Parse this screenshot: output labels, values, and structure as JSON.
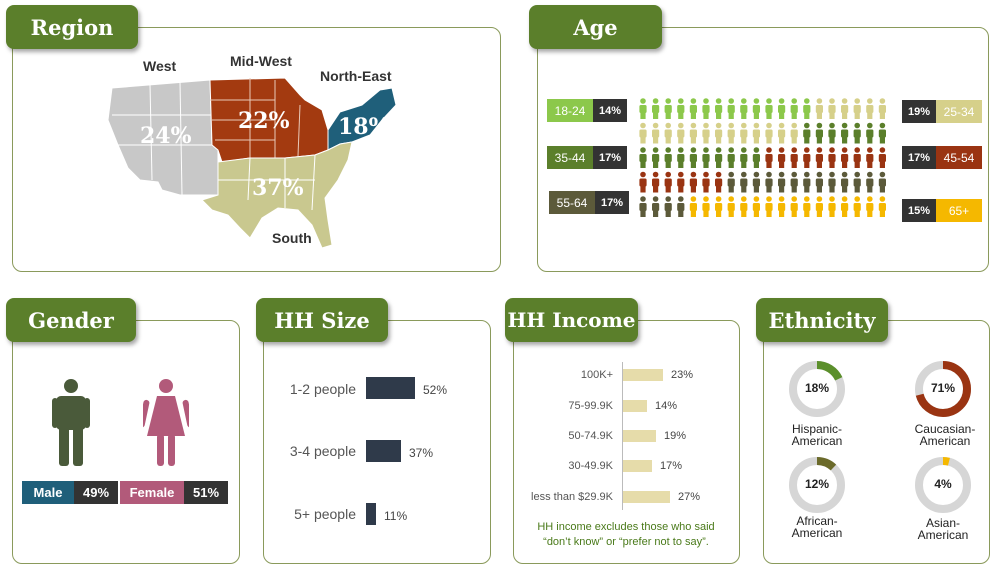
{
  "region": {
    "title": "Region",
    "areas": [
      {
        "name": "West",
        "pct": "24%"
      },
      {
        "name": "Mid-West",
        "pct": "22%"
      },
      {
        "name": "North-East",
        "pct": "18%"
      },
      {
        "name": "South",
        "pct": "37%"
      }
    ]
  },
  "age": {
    "title": "Age",
    "groups": [
      {
        "label": "18-24",
        "pct": "14%",
        "count": 14
      },
      {
        "label": "25-34",
        "pct": "19%",
        "count": 19
      },
      {
        "label": "35-44",
        "pct": "17%",
        "count": 17
      },
      {
        "label": "45-54",
        "pct": "17%",
        "count": 17
      },
      {
        "label": "55-64",
        "pct": "17%",
        "count": 17
      },
      {
        "label": "65+",
        "pct": "15%",
        "count": 15
      }
    ],
    "colors": [
      "#8cc84b",
      "#d6d08a",
      "#5b7f2b",
      "#9a3412",
      "#5c5a3a",
      "#f5b800"
    ]
  },
  "gender": {
    "title": "Gender",
    "male_label": "Male",
    "male_pct": "49%",
    "female_label": "Female",
    "female_pct": "51%"
  },
  "hh_size": {
    "title": "HH Size",
    "rows": [
      {
        "label": "1-2 people",
        "pct": "52%"
      },
      {
        "label": "3-4 people",
        "pct": "37%"
      },
      {
        "label": "5+ people",
        "pct": "11%"
      }
    ]
  },
  "hh_income": {
    "title": "HH Income",
    "rows": [
      {
        "label": "100K+",
        "pct": "23%"
      },
      {
        "label": "75-99.9K",
        "pct": "14%"
      },
      {
        "label": "50-74.9K",
        "pct": "19%"
      },
      {
        "label": "30-49.9K",
        "pct": "17%"
      },
      {
        "label": "less than $29.9K",
        "pct": "27%"
      }
    ],
    "note_line1": "HH income excludes those who said",
    "note_line2": "“don’t know” or “prefer not to say”."
  },
  "ethnicity": {
    "title": "Ethnicity",
    "items": [
      {
        "line1": "Hispanic-",
        "line2": "American",
        "pct": "18%",
        "color": "#5b8f2b"
      },
      {
        "line1": "Caucasian-",
        "line2": "American",
        "pct": "71%",
        "color": "#9a3412"
      },
      {
        "line1": "African-",
        "line2": "American",
        "pct": "12%",
        "color": "#6b6a2a"
      },
      {
        "line1": "Asian-",
        "line2": "American",
        "pct": "4%",
        "color": "#f5b800"
      }
    ]
  },
  "chart_data": [
    {
      "type": "table",
      "title": "Region",
      "categories": [
        "West",
        "Mid-West",
        "North-East",
        "South"
      ],
      "values": [
        24,
        22,
        18,
        37
      ]
    },
    {
      "type": "table",
      "title": "Age",
      "categories": [
        "18-24",
        "25-34",
        "35-44",
        "45-54",
        "55-64",
        "65+"
      ],
      "values": [
        14,
        19,
        17,
        17,
        17,
        15
      ]
    },
    {
      "type": "table",
      "title": "Gender",
      "categories": [
        "Male",
        "Female"
      ],
      "values": [
        49,
        51
      ]
    },
    {
      "type": "bar",
      "title": "HH Size",
      "categories": [
        "1-2 people",
        "3-4 people",
        "5+ people"
      ],
      "values": [
        52,
        37,
        11
      ]
    },
    {
      "type": "bar",
      "title": "HH Income",
      "categories": [
        "100K+",
        "75-99.9K",
        "50-74.9K",
        "30-49.9K",
        "less than $29.9K"
      ],
      "values": [
        23,
        14,
        19,
        17,
        27
      ]
    },
    {
      "type": "pie",
      "title": "Ethnicity",
      "categories": [
        "Hispanic-American",
        "Caucasian-American",
        "African-American",
        "Asian-American"
      ],
      "values": [
        18,
        71,
        12,
        4
      ]
    }
  ]
}
